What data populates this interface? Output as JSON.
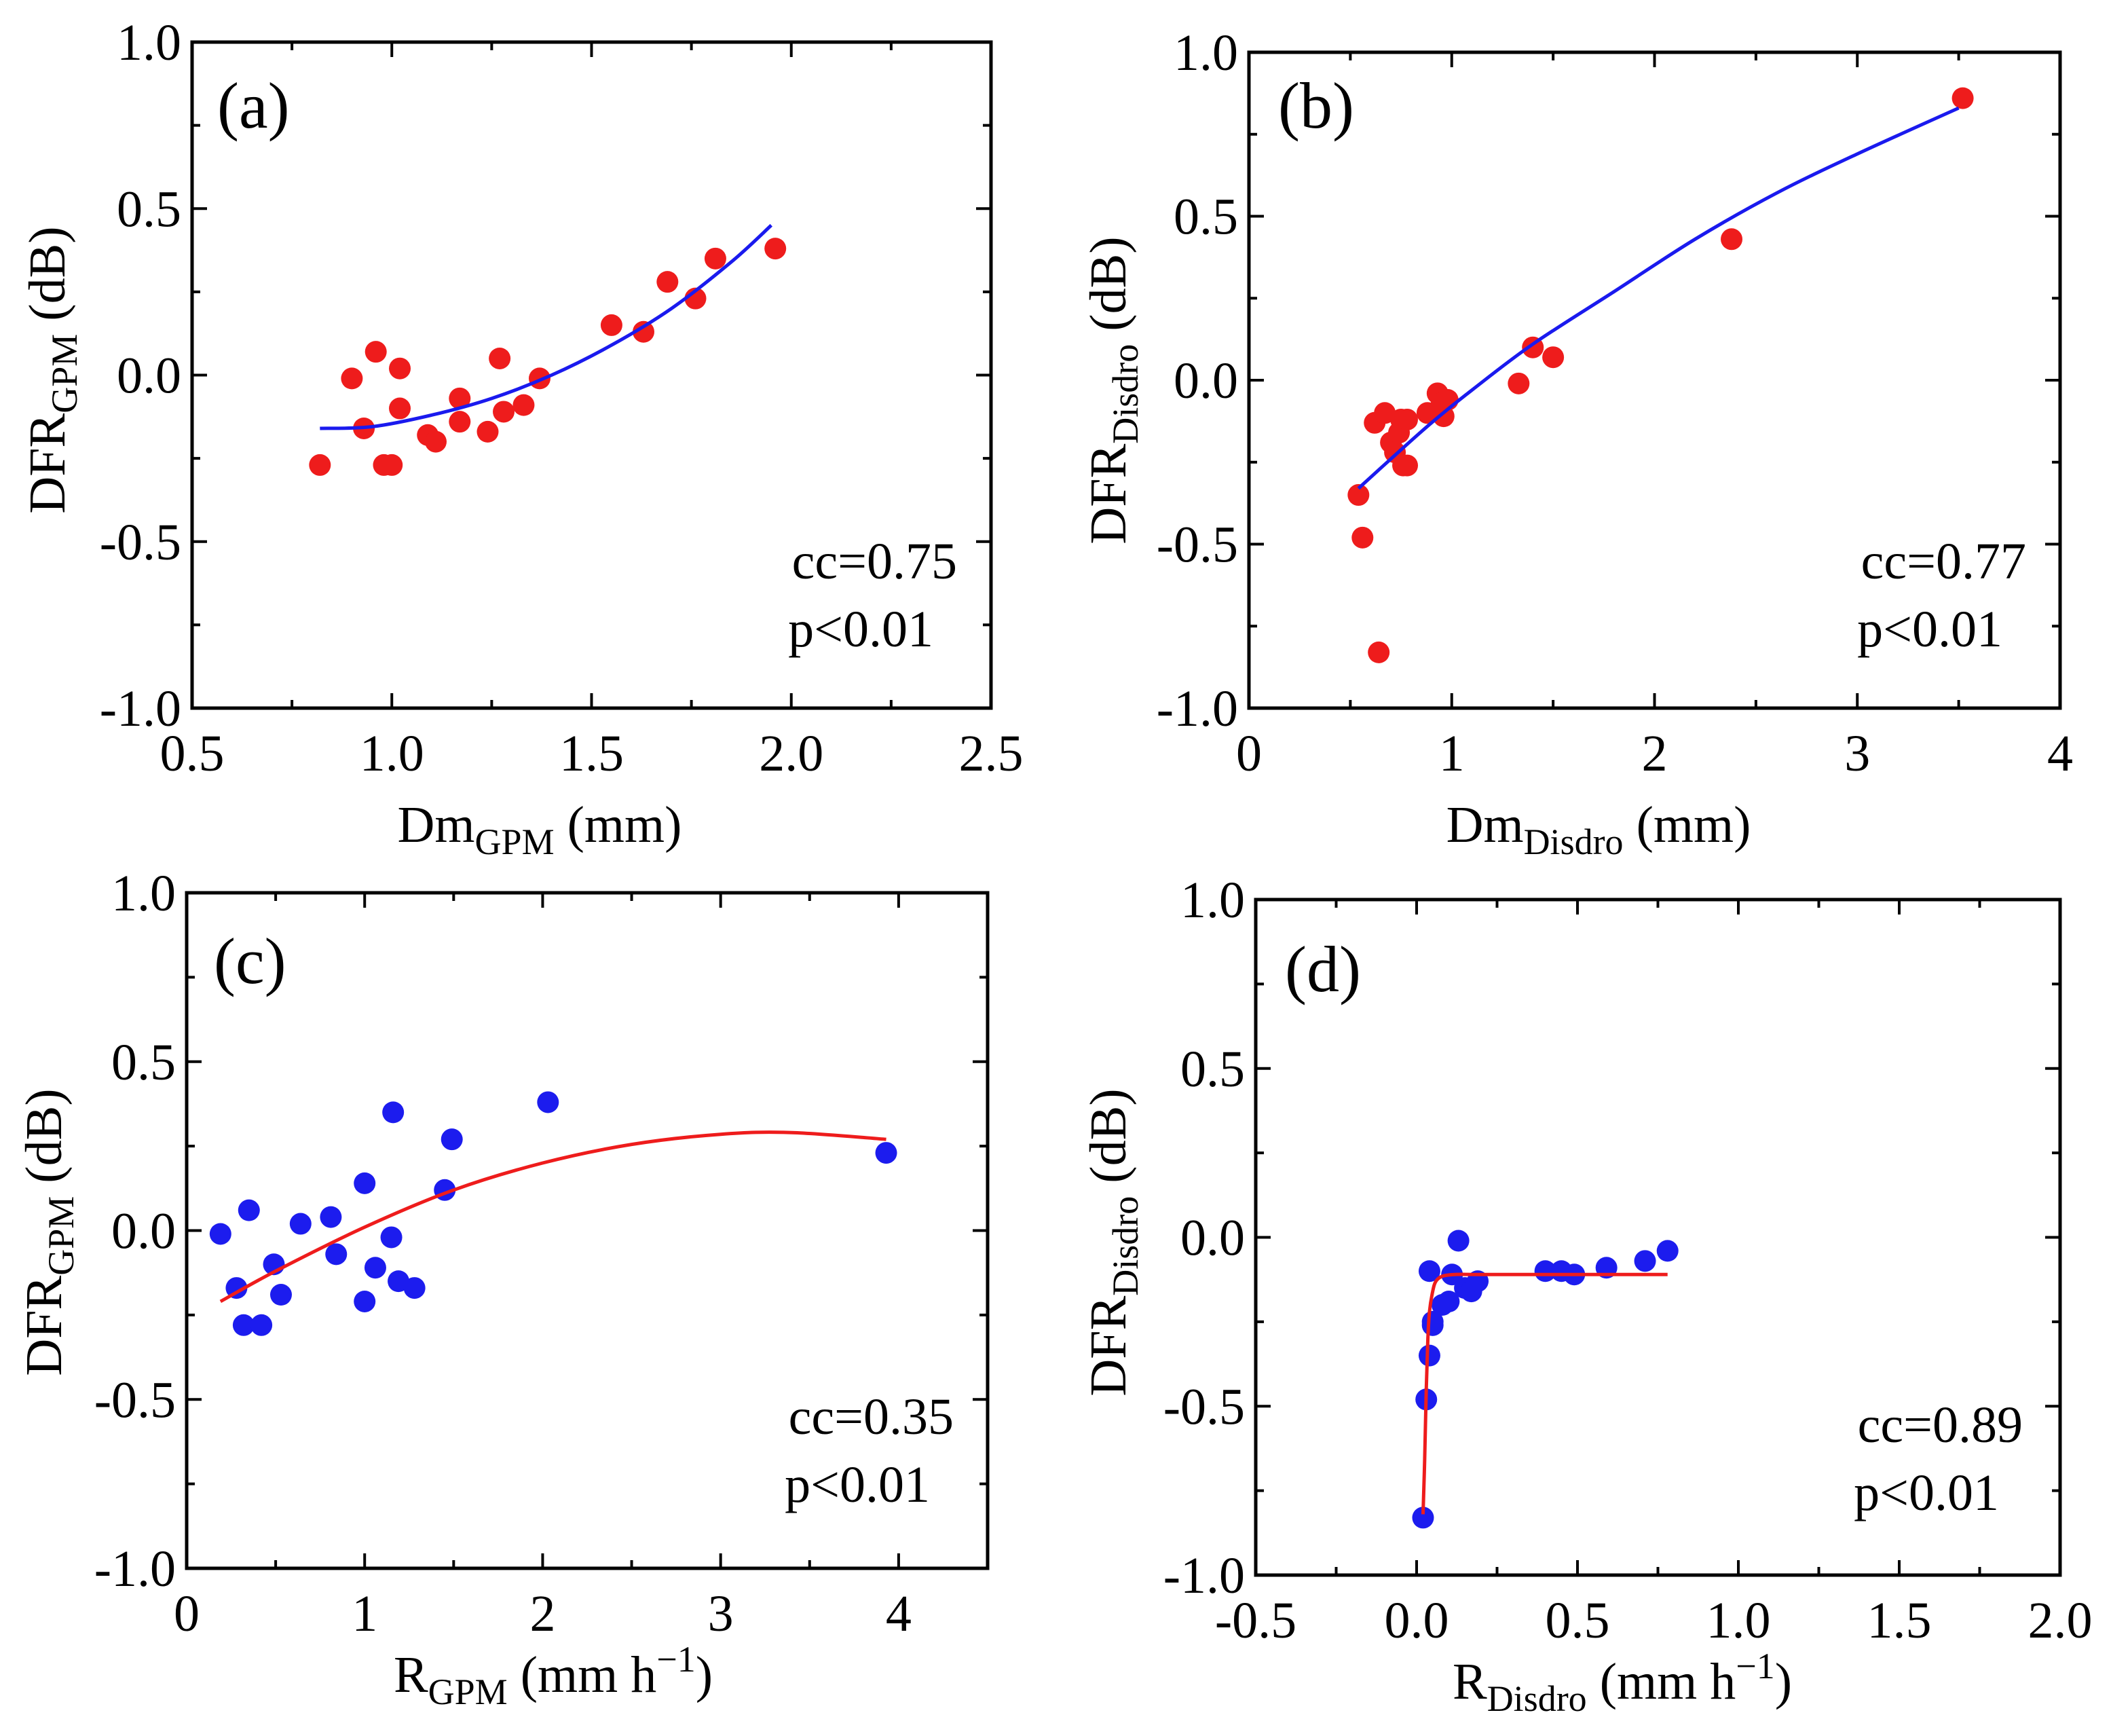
{
  "chart_data": [
    {
      "type": "scatter",
      "panel_label": "(a)",
      "xlabel": "Dm",
      "xlabel_sub": "GPM",
      "xlabel_unit": " (mm)",
      "ylabel": "DFR",
      "ylabel_sub": "GPM",
      "ylabel_unit": " (dB)",
      "xlim": [
        0.5,
        2.5
      ],
      "ylim": [
        -1.0,
        1.0
      ],
      "xticks": [
        0.5,
        1.0,
        1.5,
        2.0,
        2.5
      ],
      "xtick_labels": [
        "0.5",
        "1.0",
        "1.5",
        "2.0",
        "2.5"
      ],
      "yticks": [
        -1.0,
        -0.5,
        0.0,
        0.5,
        1.0
      ],
      "ytick_labels": [
        "-1.0",
        "-0.5",
        "0.0",
        "0.5",
        "1.0"
      ],
      "cc_text": "cc=0.75",
      "p_text": "p<0.01",
      "point_color": "#ee1c1c",
      "fit_color": "#1a1aee",
      "points": {
        "x": [
          0.82,
          0.9,
          0.93,
          0.96,
          0.98,
          1.0,
          1.02,
          1.02,
          1.09,
          1.11,
          1.17,
          1.17,
          1.24,
          1.27,
          1.28,
          1.33,
          1.37,
          1.55,
          1.63,
          1.69,
          1.76,
          1.81,
          1.96
        ],
        "y": [
          -0.27,
          -0.01,
          -0.16,
          0.07,
          -0.27,
          -0.27,
          0.02,
          -0.1,
          -0.18,
          -0.2,
          -0.14,
          -0.07,
          -0.17,
          0.05,
          -0.11,
          -0.09,
          -0.01,
          0.15,
          0.13,
          0.28,
          0.23,
          0.35,
          0.38
        ]
      },
      "fit": {
        "x": [
          0.82,
          0.95,
          1.1,
          1.25,
          1.4,
          1.55,
          1.7,
          1.85,
          1.95
        ],
        "y": [
          -0.16,
          -0.155,
          -0.12,
          -0.07,
          0.0,
          0.09,
          0.2,
          0.34,
          0.45
        ]
      }
    },
    {
      "type": "scatter",
      "panel_label": "(b)",
      "xlabel": "Dm",
      "xlabel_sub": "Disdro",
      "xlabel_unit": " (mm)",
      "ylabel": "DFR",
      "ylabel_sub": "Disdro",
      "ylabel_unit": " (dB)",
      "xlim": [
        0,
        4
      ],
      "ylim": [
        -1.0,
        1.0
      ],
      "xticks": [
        0,
        1,
        2,
        3,
        4
      ],
      "xtick_labels": [
        "0",
        "1",
        "2",
        "3",
        "4"
      ],
      "yticks": [
        -1.0,
        -0.5,
        0.0,
        0.5,
        1.0
      ],
      "ytick_labels": [
        "-1.0",
        "-0.5",
        "0.0",
        "0.5",
        "1.0"
      ],
      "cc_text": "cc=0.77",
      "p_text": "p<0.01",
      "point_color": "#ee1c1c",
      "fit_color": "#1a1aee",
      "points": {
        "x": [
          0.54,
          0.56,
          0.64,
          0.62,
          0.67,
          0.7,
          0.72,
          0.74,
          0.75,
          0.76,
          0.78,
          0.78,
          0.88,
          0.93,
          0.95,
          0.96,
          0.98,
          1.33,
          1.4,
          1.5,
          2.38,
          3.52
        ],
        "y": [
          -0.35,
          -0.48,
          -0.83,
          -0.13,
          -0.1,
          -0.19,
          -0.22,
          -0.16,
          -0.12,
          -0.26,
          -0.12,
          -0.26,
          -0.1,
          -0.04,
          -0.07,
          -0.11,
          -0.06,
          -0.01,
          0.1,
          0.07,
          0.43,
          0.86
        ]
      },
      "fit": {
        "x": [
          0.54,
          0.7,
          0.9,
          1.1,
          1.4,
          1.8,
          2.2,
          2.6,
          3.0,
          3.5
        ],
        "y": [
          -0.33,
          -0.24,
          -0.13,
          -0.03,
          0.11,
          0.27,
          0.43,
          0.57,
          0.69,
          0.83
        ]
      }
    },
    {
      "type": "scatter",
      "panel_label": "(c)",
      "xlabel": "R",
      "xlabel_sub": "GPM",
      "xlabel_unit": " (mm h",
      "xlabel_sup": "−1",
      "xlabel_close": ")",
      "ylabel": "DFR",
      "ylabel_sub": "GPM",
      "ylabel_unit": " (dB)",
      "xlim": [
        0,
        4.5
      ],
      "ylim": [
        -1.0,
        1.0
      ],
      "xticks": [
        0,
        1,
        2,
        3,
        4
      ],
      "xtick_labels": [
        "0",
        "1",
        "2",
        "3",
        "4"
      ],
      "yticks": [
        -1.0,
        -0.5,
        0.0,
        0.5,
        1.0
      ],
      "ytick_labels": [
        "-1.0",
        "-0.5",
        "0.0",
        "0.5",
        "1.0"
      ],
      "cc_text": "cc=0.35",
      "p_text": "p<0.01",
      "point_color": "#1c1cee",
      "fit_color": "#ee1c1c",
      "points": {
        "x": [
          0.19,
          0.28,
          0.32,
          0.35,
          0.42,
          0.49,
          0.53,
          0.64,
          0.81,
          0.84,
          1.0,
          1.0,
          1.06,
          1.15,
          1.16,
          1.19,
          1.28,
          1.45,
          1.49,
          2.03,
          3.93
        ],
        "y": [
          -0.01,
          -0.17,
          -0.28,
          0.06,
          -0.28,
          -0.1,
          -0.19,
          0.02,
          0.04,
          -0.07,
          0.14,
          -0.21,
          -0.11,
          -0.02,
          0.35,
          -0.15,
          -0.17,
          0.12,
          0.27,
          0.38,
          0.23
        ]
      },
      "fit": {
        "x": [
          0.19,
          0.5,
          1.0,
          1.5,
          2.0,
          2.5,
          3.0,
          3.4,
          3.93
        ],
        "y": [
          -0.21,
          -0.12,
          0.01,
          0.12,
          0.2,
          0.255,
          0.285,
          0.29,
          0.27
        ]
      }
    },
    {
      "type": "scatter",
      "panel_label": "(d)",
      "xlabel": "R",
      "xlabel_sub": "Disdro",
      "xlabel_unit": " (mm h",
      "xlabel_sup": "−1",
      "xlabel_close": ")",
      "ylabel": "DFR",
      "ylabel_sub": "Disdro",
      "ylabel_unit": " (dB)",
      "xlim": [
        -0.5,
        2.0
      ],
      "ylim": [
        -1.0,
        1.0
      ],
      "xticks": [
        -0.5,
        0.0,
        0.5,
        1.0,
        1.5,
        2.0
      ],
      "xtick_labels": [
        "-0.5",
        "0.0",
        "0.5",
        "1.0",
        "1.5",
        "2.0"
      ],
      "yticks": [
        -1.0,
        -0.5,
        0.0,
        0.5,
        1.0
      ],
      "ytick_labels": [
        "-1.0",
        "-0.5",
        "0.0",
        "0.5",
        "1.0"
      ],
      "cc_text": "cc=0.89",
      "p_text": "p<0.01",
      "point_color": "#1c1cee",
      "fit_color": "#ee1c1c",
      "points": {
        "x": [
          0.02,
          0.03,
          0.04,
          0.04,
          0.05,
          0.05,
          0.08,
          0.1,
          0.11,
          0.13,
          0.15,
          0.17,
          0.19,
          0.4,
          0.45,
          0.49,
          0.59,
          0.71,
          0.78
        ],
        "y": [
          -0.83,
          -0.48,
          -0.35,
          -0.1,
          -0.25,
          -0.26,
          -0.2,
          -0.19,
          -0.11,
          -0.01,
          -0.15,
          -0.16,
          -0.13,
          -0.1,
          -0.1,
          -0.11,
          -0.09,
          -0.07,
          -0.04
        ]
      },
      "fit": {
        "x": [
          0.02,
          0.025,
          0.03,
          0.035,
          0.04,
          0.05,
          0.06,
          0.08,
          0.12,
          0.2,
          0.4,
          0.78
        ],
        "y": [
          -0.82,
          -0.66,
          -0.45,
          -0.3,
          -0.22,
          -0.16,
          -0.13,
          -0.115,
          -0.11,
          -0.11,
          -0.11,
          -0.11
        ]
      }
    }
  ]
}
